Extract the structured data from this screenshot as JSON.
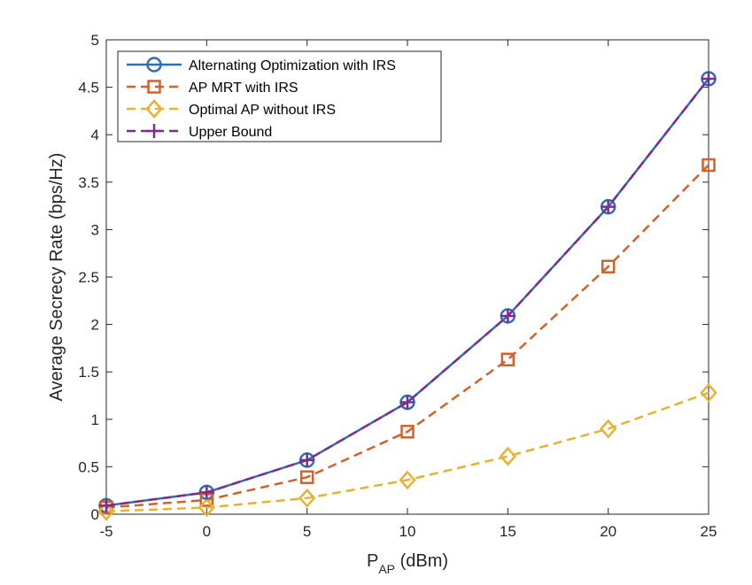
{
  "chart_data": {
    "type": "line",
    "title": "",
    "xlabel_main": "P",
    "xlabel_sub": "AP",
    "xlabel_unit": " (dBm)",
    "ylabel": "Average Secrecy Rate (bps/Hz)",
    "xlim": [
      -5,
      25
    ],
    "ylim": [
      0,
      5
    ],
    "xticks": [
      -5,
      0,
      5,
      10,
      15,
      20,
      25
    ],
    "yticks": [
      0,
      0.5,
      1,
      1.5,
      2,
      2.5,
      3,
      3.5,
      4,
      4.5,
      5
    ],
    "ytick_labels": [
      "0",
      "0.5",
      "1",
      "1.5",
      "2",
      "2.5",
      "3",
      "3.5",
      "4",
      "4.5",
      "5"
    ],
    "grid": false,
    "legend_position": "top-left",
    "x": [
      -5,
      0,
      5,
      10,
      15,
      20,
      25
    ],
    "series": [
      {
        "name": "Alternating Optimization with IRS",
        "values": [
          0.09,
          0.23,
          0.57,
          1.18,
          2.09,
          3.24,
          4.59
        ],
        "color": "#2f6db5",
        "dash": "solid",
        "marker": "circle"
      },
      {
        "name": "AP MRT with IRS",
        "values": [
          0.07,
          0.15,
          0.39,
          0.87,
          1.63,
          2.61,
          3.68
        ],
        "color": "#d2612a",
        "dash": "dashed",
        "marker": "square"
      },
      {
        "name": "Optimal AP without IRS",
        "values": [
          0.03,
          0.07,
          0.17,
          0.36,
          0.61,
          0.9,
          1.28
        ],
        "color": "#e6b234",
        "dash": "dashed",
        "marker": "diamond"
      },
      {
        "name": "Upper Bound",
        "values": [
          0.09,
          0.23,
          0.57,
          1.18,
          2.09,
          3.24,
          4.59
        ],
        "color": "#7b2d8e",
        "dash": "dashed",
        "marker": "plus"
      }
    ]
  }
}
